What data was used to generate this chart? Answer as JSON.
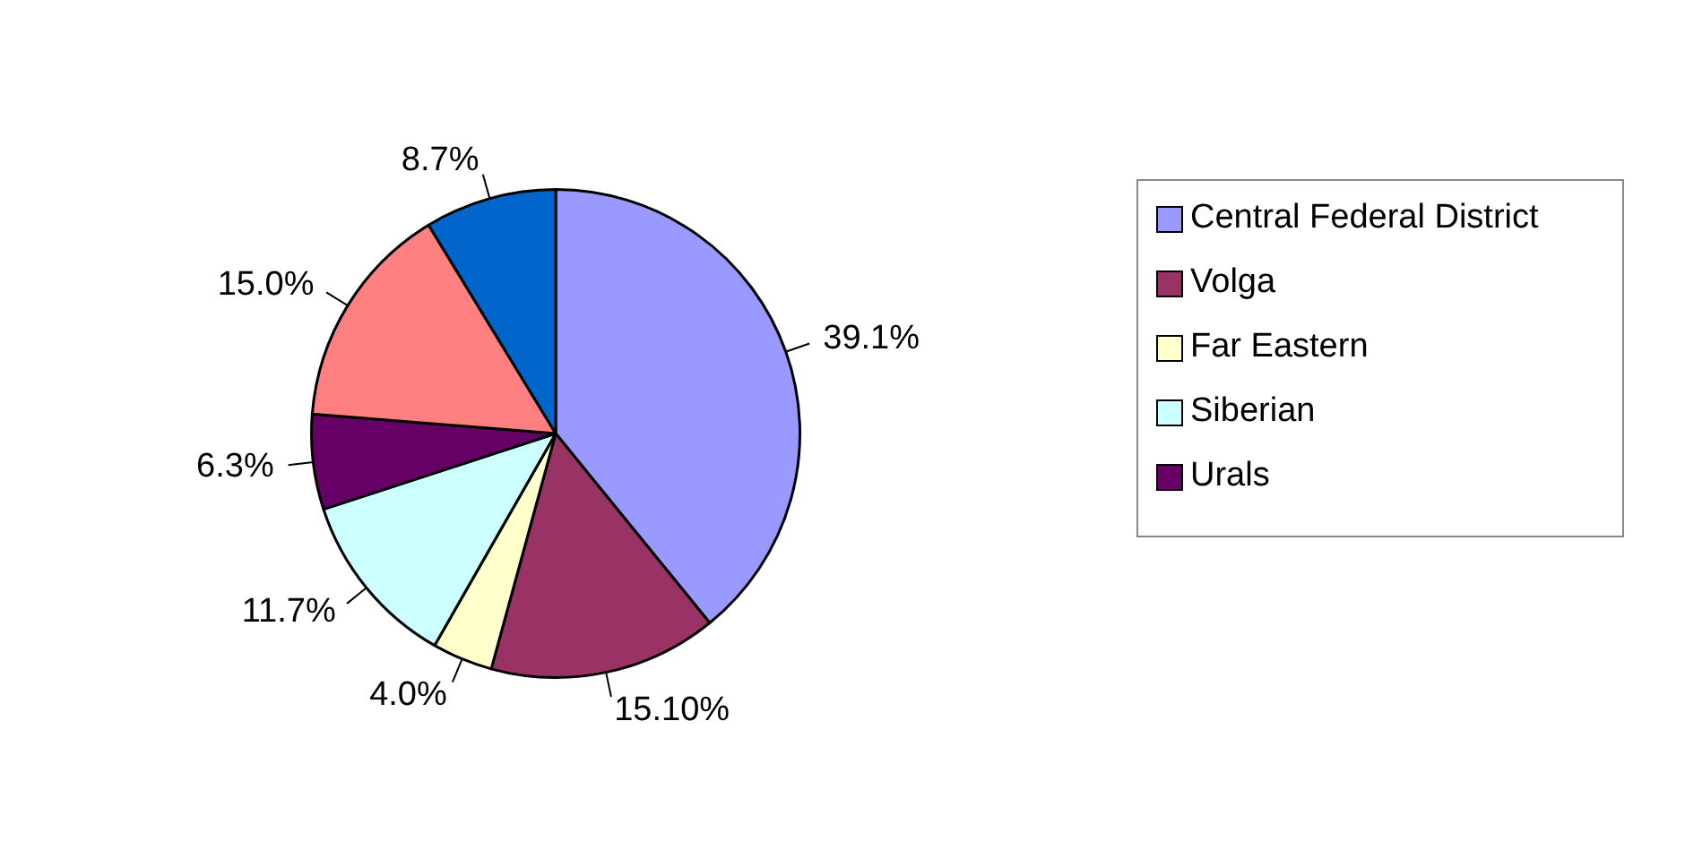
{
  "chart_data": {
    "type": "pie",
    "categories": [
      "Central Federal District",
      "Volga",
      "Far Eastern",
      "Siberian",
      "Urals",
      null,
      null
    ],
    "values": [
      39.1,
      15.1,
      4.0,
      11.7,
      6.3,
      15.0,
      8.7
    ],
    "value_labels": [
      "39.1%",
      "15.10%",
      "4.0%",
      "11.7%",
      "6.3%",
      "15.0%",
      "8.7%"
    ],
    "colors": [
      "#9999ff",
      "#993366",
      "#ffffcc",
      "#ccffff",
      "#660066",
      "#ff8080",
      "#0066cc"
    ],
    "legend": "right"
  }
}
